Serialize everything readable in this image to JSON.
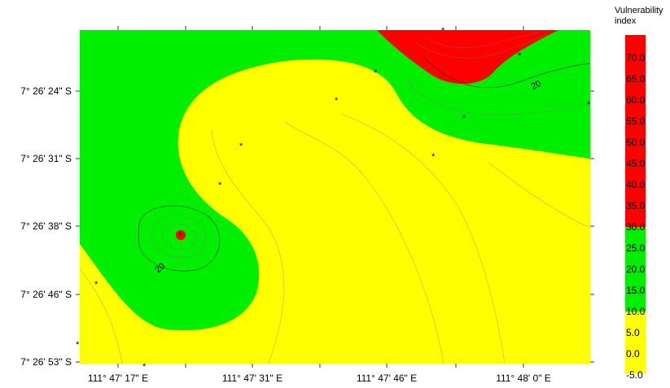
{
  "chart_data": {
    "type": "heatmap",
    "legend": {
      "title_line1": "Vulnerability",
      "title_line2": "index",
      "levels": [
        "70.0",
        "65.0",
        "60.0",
        "55.0",
        "50.0",
        "45.0",
        "40.0",
        "35.0",
        "30.0",
        "25.0",
        "20.0",
        "15.0",
        "10.0",
        "5.0",
        "0.0",
        "-5.0"
      ],
      "bands": [
        {
          "from": 30,
          "to": 72.5,
          "color": "#ff0000"
        },
        {
          "from": 10,
          "to": 30,
          "color": "#00ee00"
        },
        {
          "from": -5,
          "to": 10,
          "color": "#ffff00"
        }
      ]
    },
    "x_ticks": [
      "111° 47' 17\" E",
      "111° 47' 31\" E",
      "111° 47' 46\" E",
      "111° 48' 0\" E"
    ],
    "y_ticks": [
      "7° 26' 24\" S",
      "7° 26' 31\" S",
      "7° 26' 38\" S",
      "7° 26' 46\" S",
      "7° 26' 53\" S"
    ],
    "contour_labels": [
      "20",
      "20"
    ],
    "colors": {
      "high": "#ff0000",
      "medium": "#00ee00",
      "low": "#ffff00"
    }
  }
}
